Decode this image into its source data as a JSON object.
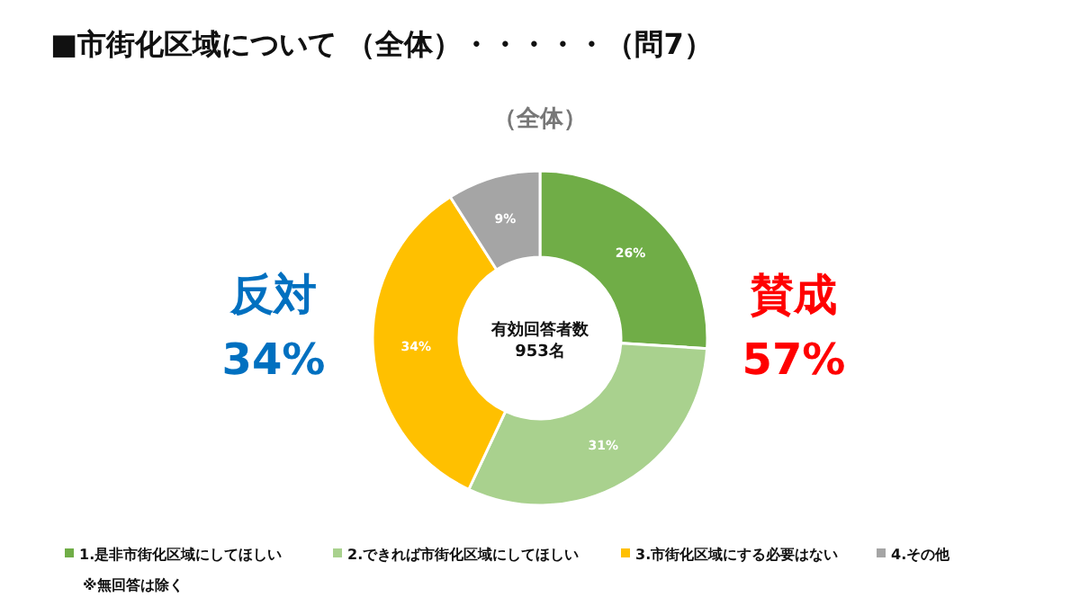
{
  "chart_data": {
    "type": "donut",
    "title": "■市街化区域について （全体）・・・・・（問7）",
    "subtitle": "（全体）",
    "categories": [
      "1.是非市街化区域にしてほしい",
      "2.できれば市街化区域にしてほしい",
      "3.市街化区域にする必要はない",
      "4.その他"
    ],
    "values": [
      26,
      31,
      34,
      9
    ],
    "colors": [
      "#70ad47",
      "#a9d18e",
      "#ffc000",
      "#a5a5a5"
    ],
    "value_labels": [
      "26%",
      "31%",
      "34%",
      "9%"
    ],
    "legend": "bottom",
    "annotations": [
      "反対",
      "34%",
      "賛成",
      "57%",
      "有効回答者数",
      "953名",
      "※無回答は除く"
    ]
  }
}
